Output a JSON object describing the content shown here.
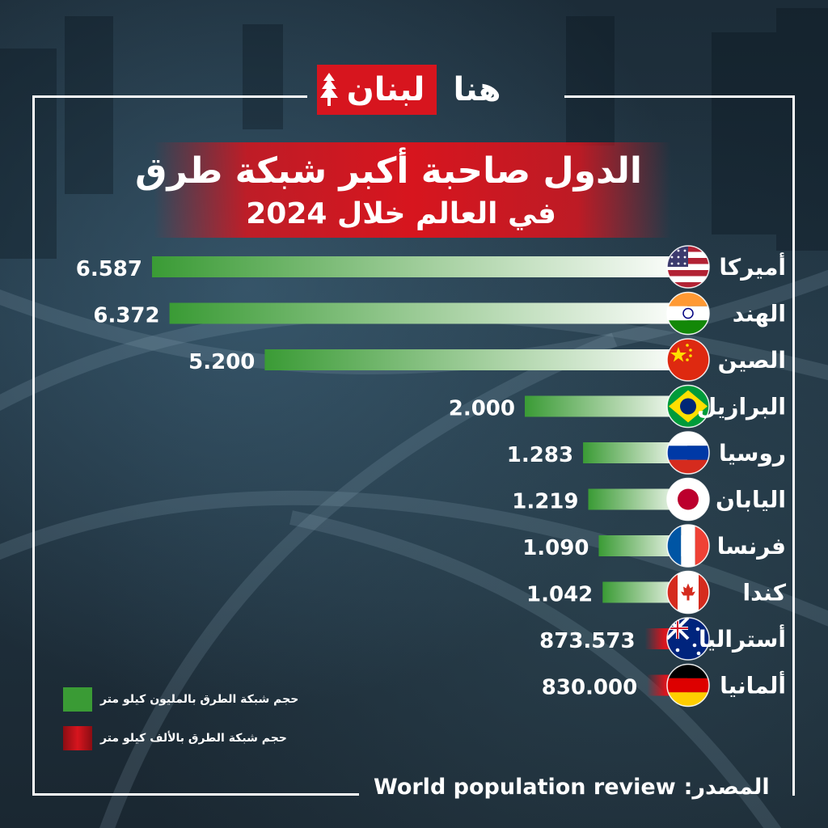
{
  "logo": {
    "word_red": "لبنان",
    "word_white": "هنا"
  },
  "title": {
    "line1": "الدول صاحبة أكبر شبكة طرق",
    "line2": "في العالم خلال 2024"
  },
  "chart_data": {
    "type": "bar",
    "orientation": "horizontal",
    "categories": [
      "أميركا",
      "الهند",
      "الصين",
      "البرازيل",
      "روسيا",
      "اليابان",
      "فرنسا",
      "كندا",
      "أستراليا",
      "ألمانيا"
    ],
    "values": [
      6.587,
      6.372,
      5.2,
      2.0,
      1.283,
      1.219,
      1.09,
      1.042,
      873.573,
      830.0
    ],
    "value_labels": [
      "6.587",
      "6.372",
      "5.200",
      "2.000",
      "1.283",
      "1.219",
      "1.090",
      "1.042",
      "873.573",
      "830.000"
    ],
    "units": [
      "million",
      "million",
      "million",
      "million",
      "million",
      "million",
      "million",
      "million",
      "thousand",
      "thousand"
    ],
    "flags": [
      "usa-flag-icon",
      "india-flag-icon",
      "china-flag-icon",
      "brazil-flag-icon",
      "russia-flag-icon",
      "japan-flag-icon",
      "france-flag-icon",
      "canada-flag-icon",
      "australia-flag-icon",
      "germany-flag-icon"
    ],
    "colors": {
      "million": "#3a9b35",
      "thousand": "#d7151e"
    },
    "legend": [
      {
        "label": "حجم شبكة الطرق بالمليون كيلو متر",
        "color": "#3a9b35"
      },
      {
        "label": "حجم شبكة الطرق بالألف كيلو متر",
        "color": "#d7151e"
      }
    ]
  },
  "source": {
    "label": "المصدر:",
    "value": "World population review"
  }
}
